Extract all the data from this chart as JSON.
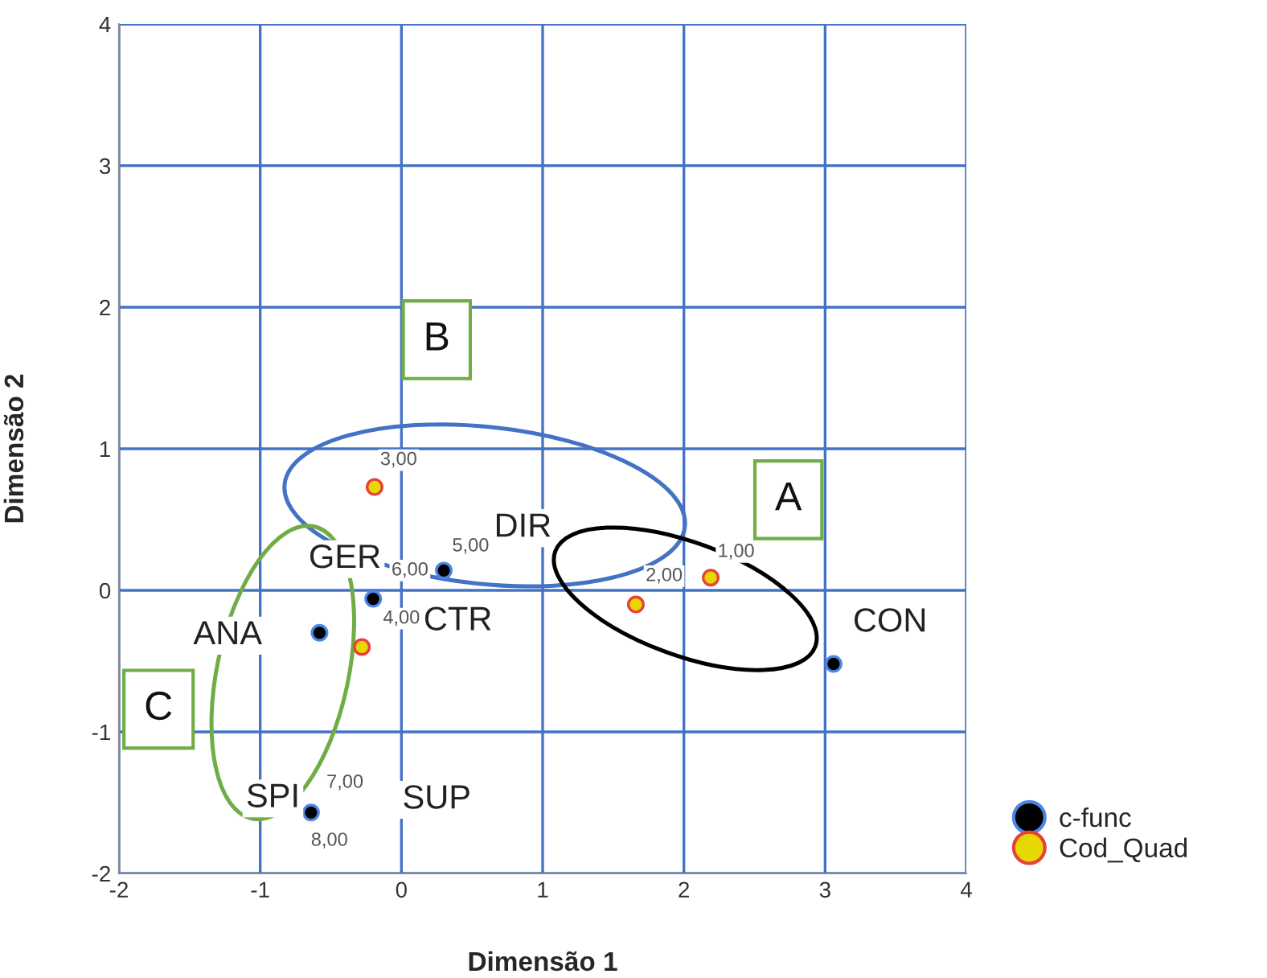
{
  "chart_data": {
    "type": "scatter",
    "xlabel": "Dimensão 1",
    "ylabel": "Dimensão 2",
    "xlim": [
      -2,
      4
    ],
    "ylim": [
      -2,
      4
    ],
    "xticks": [
      -2,
      -1,
      0,
      1,
      2,
      3,
      4
    ],
    "yticks": [
      -2,
      -1,
      0,
      1,
      2,
      3,
      4
    ],
    "grid": true,
    "legend": "right",
    "marker": "circle",
    "series": [
      {
        "name": "c-func",
        "color": "#000000",
        "x": [
          0.3,
          -0.2,
          -0.58,
          3.06,
          -0.64
        ],
        "values": [
          0.14,
          -0.06,
          -0.3,
          -0.52,
          -1.57
        ]
      },
      {
        "name": "Cod_Quad",
        "color": "#e6d800",
        "x": [
          2.19,
          1.66,
          -0.19,
          -0.28
        ],
        "values": [
          0.09,
          -0.1,
          0.73,
          -0.4
        ]
      }
    ],
    "annotations": [
      "1,00",
      "2,00",
      "3,00",
      "4,00",
      "5,00",
      "6,00",
      "7,00",
      "8,00",
      "DIR",
      "GER",
      "CTR",
      "ANA",
      "CON",
      "SPI",
      "SUP",
      "A",
      "B",
      "C"
    ]
  }
}
